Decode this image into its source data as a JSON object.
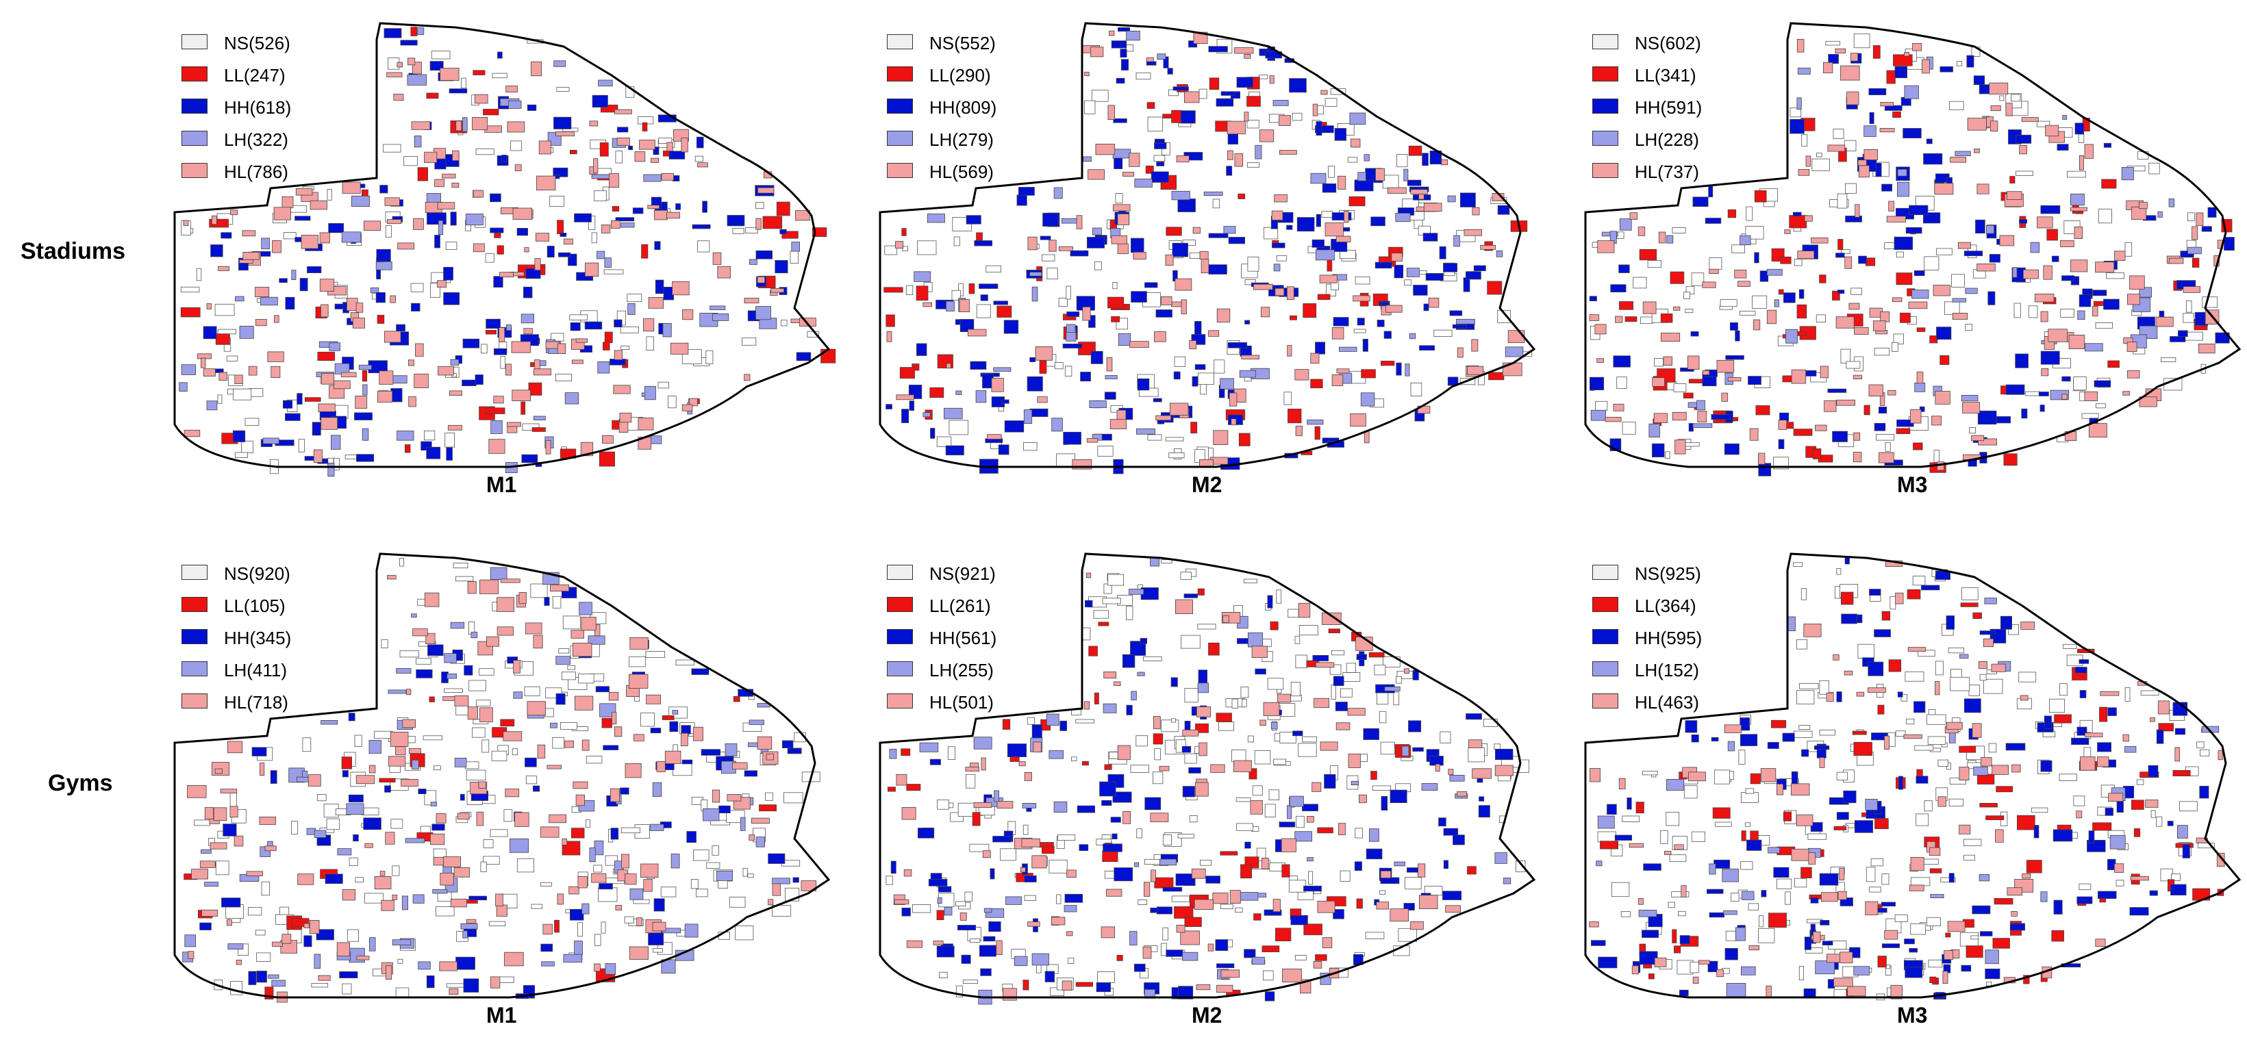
{
  "row_labels": [
    "Stadiums",
    "Gyms"
  ],
  "colors": {
    "NS": "#f0f0f0",
    "LL": "#ee1111",
    "HH": "#0010d0",
    "LH": "#9a9ee8",
    "HL": "#f2a0a0",
    "outline": "#000000"
  },
  "panels": [
    {
      "row": "Stadiums",
      "model": "M1",
      "legend": [
        {
          "code": "NS",
          "label": "NS(526)",
          "count": 526
        },
        {
          "code": "LL",
          "label": "LL(247)",
          "count": 247
        },
        {
          "code": "HH",
          "label": "HH(618)",
          "count": 618
        },
        {
          "code": "LH",
          "label": "LH(322)",
          "count": 322
        },
        {
          "code": "HL",
          "label": "HL(786)",
          "count": 786
        }
      ]
    },
    {
      "row": "Stadiums",
      "model": "M2",
      "legend": [
        {
          "code": "NS",
          "label": "NS(552)",
          "count": 552
        },
        {
          "code": "LL",
          "label": "LL(290)",
          "count": 290
        },
        {
          "code": "HH",
          "label": "HH(809)",
          "count": 809
        },
        {
          "code": "LH",
          "label": "LH(279)",
          "count": 279
        },
        {
          "code": "HL",
          "label": "HL(569)",
          "count": 569
        }
      ]
    },
    {
      "row": "Stadiums",
      "model": "M3",
      "legend": [
        {
          "code": "NS",
          "label": "NS(602)",
          "count": 602
        },
        {
          "code": "LL",
          "label": "LL(341)",
          "count": 341
        },
        {
          "code": "HH",
          "label": "HH(591)",
          "count": 591
        },
        {
          "code": "LH",
          "label": "LH(228)",
          "count": 228
        },
        {
          "code": "HL",
          "label": "HL(737)",
          "count": 737
        }
      ]
    },
    {
      "row": "Gyms",
      "model": "M1",
      "legend": [
        {
          "code": "NS",
          "label": "NS(920)",
          "count": 920
        },
        {
          "code": "LL",
          "label": "LL(105)",
          "count": 105
        },
        {
          "code": "HH",
          "label": "HH(345)",
          "count": 345
        },
        {
          "code": "LH",
          "label": "LH(411)",
          "count": 411
        },
        {
          "code": "HL",
          "label": "HL(718)",
          "count": 718
        }
      ]
    },
    {
      "row": "Gyms",
      "model": "M2",
      "legend": [
        {
          "code": "NS",
          "label": "NS(921)",
          "count": 921
        },
        {
          "code": "LL",
          "label": "LL(261)",
          "count": 261
        },
        {
          "code": "HH",
          "label": "HH(561)",
          "count": 561
        },
        {
          "code": "LH",
          "label": "LH(255)",
          "count": 255
        },
        {
          "code": "HL",
          "label": "HL(501)",
          "count": 501
        }
      ]
    },
    {
      "row": "Gyms",
      "model": "M3",
      "legend": [
        {
          "code": "NS",
          "label": "NS(925)",
          "count": 925
        },
        {
          "code": "LL",
          "label": "LL(364)",
          "count": 364
        },
        {
          "code": "HH",
          "label": "HH(595)",
          "count": 595
        },
        {
          "code": "LH",
          "label": "LH(152)",
          "count": 152
        },
        {
          "code": "HL",
          "label": "HL(463)",
          "count": 463
        }
      ]
    }
  ]
}
